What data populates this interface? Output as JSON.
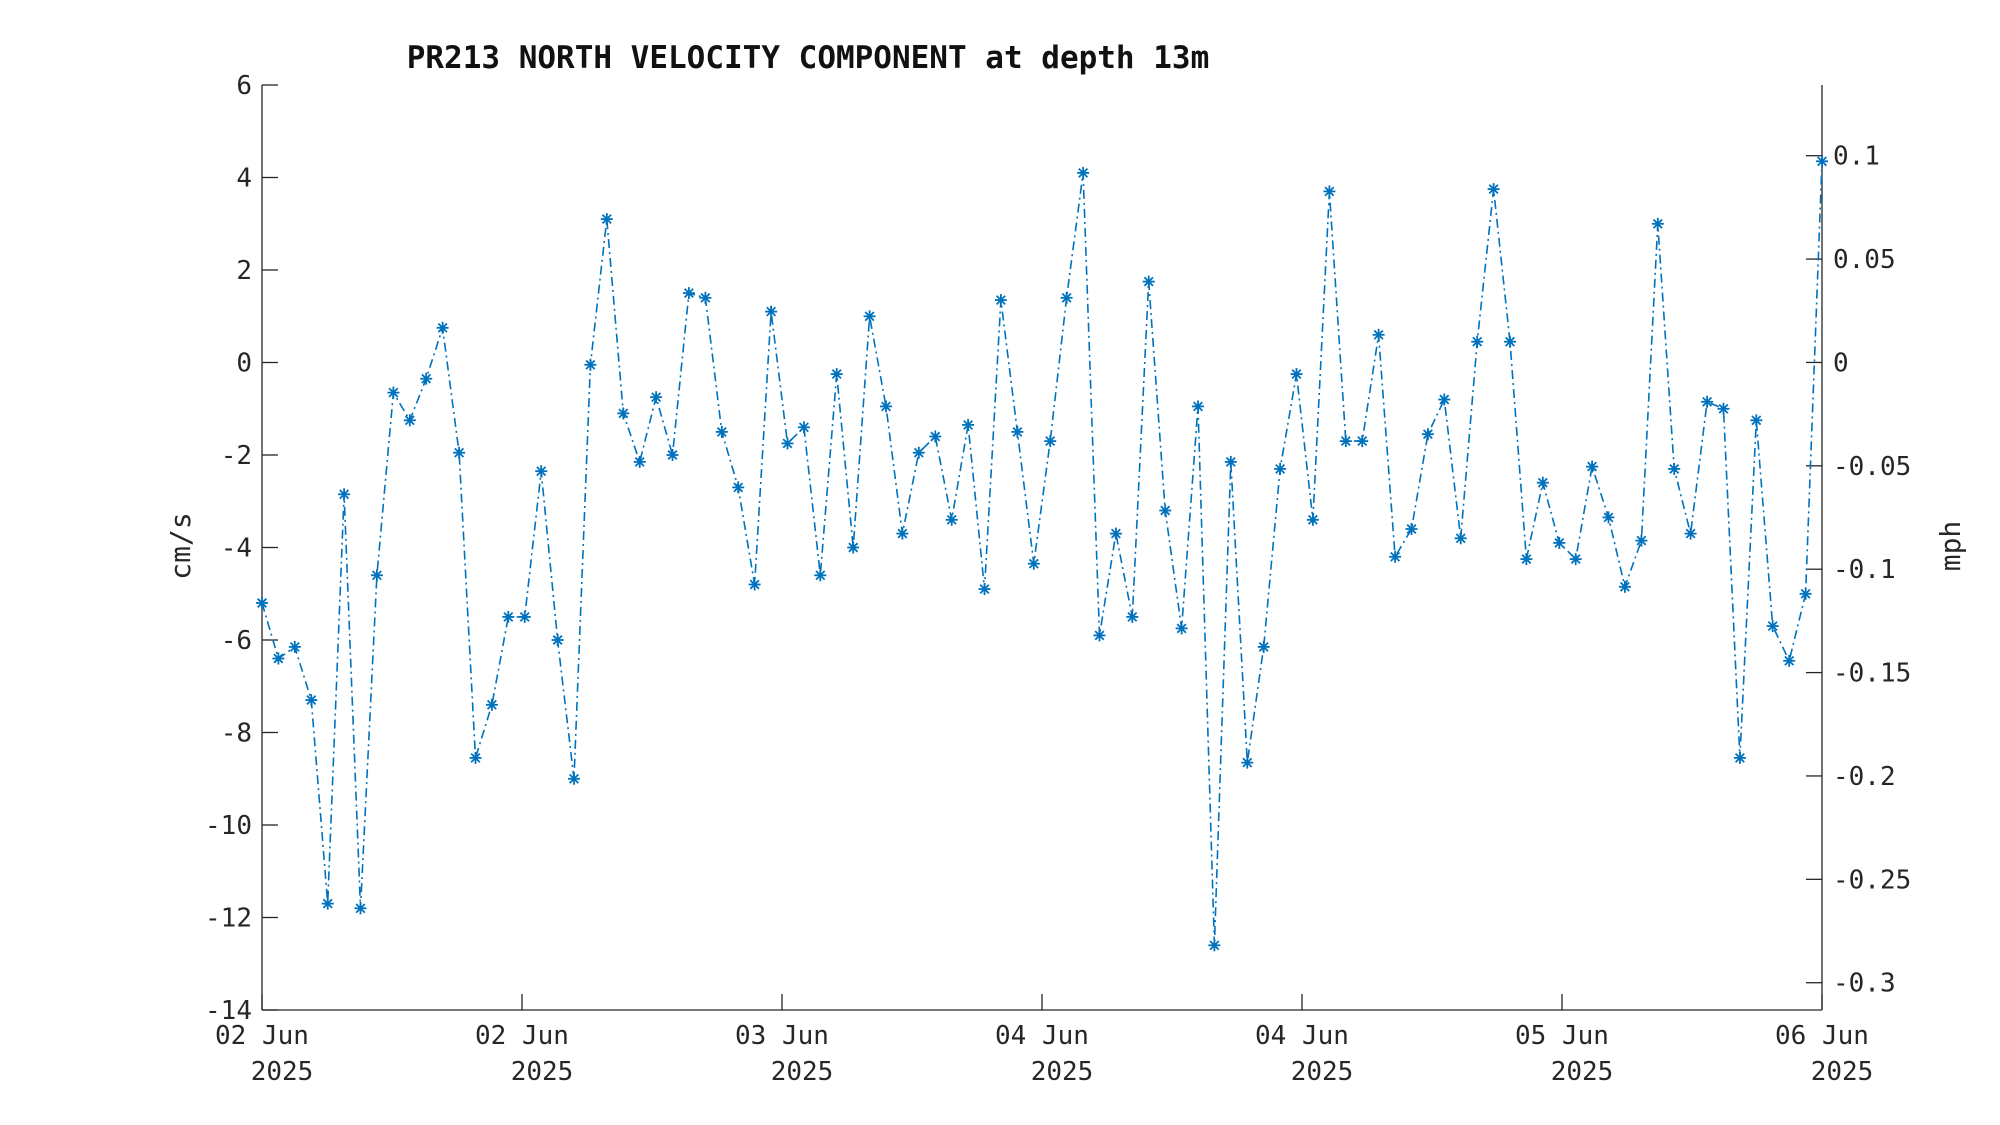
{
  "chart_data": {
    "type": "line",
    "title": "PR213 NORTH VELOCITY COMPONENT at depth 13m",
    "ylabel": "cm/s",
    "y2label": "mph",
    "ylim": [
      -14,
      6
    ],
    "y2lim": [
      -0.3132,
      0.1342
    ],
    "yticks": [
      "6",
      "4",
      "2",
      "0",
      "-2",
      "-4",
      "-6",
      "-8",
      "-10",
      "-12",
      "-14"
    ],
    "y2ticks": [
      "0.1",
      "0.05",
      "0",
      "-0.05",
      "-0.1",
      "-0.15",
      "-0.2",
      "-0.25",
      "-0.3"
    ],
    "xticks": [
      {
        "day": "02 Jun",
        "year": "2025"
      },
      {
        "day": "02 Jun",
        "year": "2025"
      },
      {
        "day": "03 Jun",
        "year": "2025"
      },
      {
        "day": "04 Jun",
        "year": "2025"
      },
      {
        "day": "04 Jun",
        "year": "2025"
      },
      {
        "day": "05 Jun",
        "year": "2025"
      },
      {
        "day": "06 Jun",
        "year": "2025"
      }
    ],
    "grid": false,
    "line_style": "dash-dot",
    "marker": "asterisk",
    "color": "#0072bd",
    "series": [
      {
        "values": [
          -5.2,
          -6.4,
          -6.15,
          -7.3,
          -11.7,
          -2.85,
          -11.8,
          -4.6,
          -0.65,
          -1.25,
          -0.35,
          0.75,
          -1.95,
          -8.55,
          -7.4,
          -5.5,
          -5.5,
          -2.35,
          -6.0,
          -9.0,
          -0.05,
          3.1,
          -1.1,
          -2.15,
          -0.75,
          -2.0,
          1.5,
          1.4,
          -1.5,
          -2.7,
          -4.8,
          1.1,
          -1.75,
          -1.4,
          -4.6,
          -0.25,
          -4.0,
          1.0,
          -0.95,
          -3.7,
          -1.95,
          -1.6,
          -3.4,
          -1.35,
          -4.9,
          1.35,
          -1.5,
          -4.35,
          -1.7,
          1.4,
          4.1,
          -5.9,
          -3.7,
          -5.5,
          1.75,
          -3.2,
          -5.75,
          -0.95,
          -12.6,
          -2.15,
          -8.65,
          -6.15,
          -2.3,
          -0.25,
          -3.4,
          3.7,
          -1.7,
          -1.7,
          0.6,
          -4.2,
          -3.6,
          -1.55,
          -0.8,
          -3.8,
          0.45,
          3.75,
          0.45,
          -4.25,
          -2.6,
          -3.9,
          -4.25,
          -2.25,
          -3.35,
          -4.85,
          -3.85,
          3.0,
          -2.3,
          -3.7,
          -0.85,
          -1.0,
          -8.55,
          -1.25,
          -5.7,
          -6.45,
          -5.0,
          4.35
        ]
      }
    ]
  }
}
